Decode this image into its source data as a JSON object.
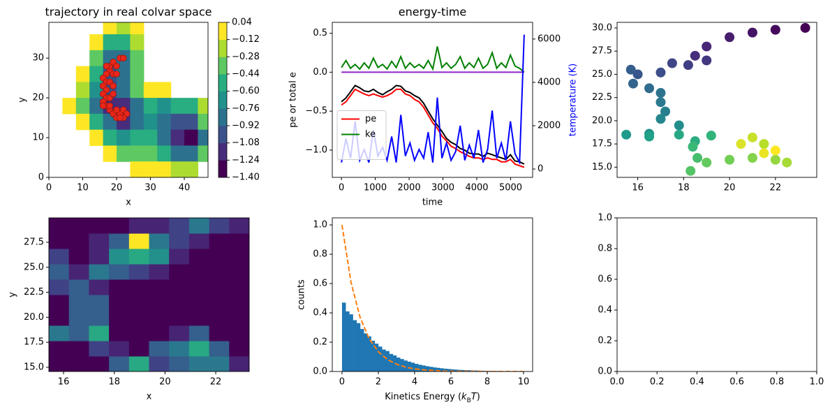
{
  "chart_data": [
    {
      "type": "contour",
      "title": "trajectory in real colvar space",
      "xlabel": "x",
      "ylabel": "y",
      "xlim": [
        0,
        47
      ],
      "ylim": [
        0,
        39
      ],
      "xticks": [
        0,
        10,
        20,
        30,
        40
      ],
      "yticks": [
        0,
        10,
        20,
        30
      ],
      "x": [
        2,
        6,
        10,
        14,
        18,
        22,
        26,
        30,
        34,
        38,
        42,
        46
      ],
      "y": [
        38,
        34,
        30,
        26,
        22,
        18,
        14,
        10,
        6,
        2
      ],
      "z": [
        [
          null,
          null,
          null,
          null,
          0.0,
          -0.2,
          -0.1,
          null,
          null,
          null,
          null,
          null
        ],
        [
          null,
          null,
          null,
          -0.1,
          -0.5,
          -0.6,
          -0.2,
          null,
          null,
          null,
          null,
          null
        ],
        [
          null,
          null,
          null,
          -0.3,
          -0.8,
          -0.8,
          -0.3,
          null,
          null,
          null,
          null,
          null
        ],
        [
          null,
          null,
          -0.1,
          -0.6,
          -1.0,
          -0.8,
          -0.3,
          null,
          null,
          null,
          null,
          null
        ],
        [
          null,
          null,
          -0.2,
          -0.7,
          -1.0,
          -0.8,
          -0.4,
          -0.1,
          0.0,
          null,
          null,
          null
        ],
        [
          null,
          -0.1,
          -0.3,
          -0.8,
          -1.1,
          -1.2,
          -0.8,
          -0.6,
          -0.7,
          -0.6,
          -0.5,
          -0.2
        ],
        [
          null,
          null,
          -0.1,
          -0.5,
          -0.9,
          -1.2,
          -0.8,
          -0.7,
          -0.9,
          -1.0,
          -1.0,
          -0.4
        ],
        [
          null,
          null,
          null,
          -0.1,
          -0.5,
          -0.7,
          -0.6,
          -0.6,
          -0.9,
          -1.2,
          -1.4,
          -0.8
        ],
        [
          null,
          null,
          null,
          null,
          -0.1,
          -0.3,
          -0.3,
          -0.3,
          -0.5,
          -0.8,
          -0.9,
          -0.4
        ],
        [
          null,
          null,
          null,
          null,
          null,
          null,
          0.0,
          -0.1,
          -0.1,
          -0.2,
          -0.2,
          null
        ]
      ],
      "cbar_ticks": [
        {
          "value": -1.4,
          "label": "−1.40"
        },
        {
          "value": -1.24,
          "label": "−1.24"
        },
        {
          "value": -1.08,
          "label": "−1.08"
        },
        {
          "value": -0.92,
          "label": "−0.92"
        },
        {
          "value": -0.76,
          "label": "−0.76"
        },
        {
          "value": -0.6,
          "label": "−0.60"
        },
        {
          "value": -0.44,
          "label": "−0.44"
        },
        {
          "value": -0.28,
          "label": "−0.28"
        },
        {
          "value": -0.12,
          "label": "−0.12"
        },
        0.04
      ],
      "colors": [
        "#440154",
        "#472d7b",
        "#3b528b",
        "#2c728e",
        "#21918c",
        "#28ae80",
        "#5ec962",
        "#addc30",
        "#fde725"
      ],
      "traj_x": [
        18,
        17,
        16,
        17,
        16,
        17,
        16,
        17,
        16,
        17,
        18,
        19,
        20,
        21,
        22,
        23,
        22,
        20,
        19,
        18,
        19,
        20,
        21,
        22,
        20,
        18,
        17,
        19,
        18,
        19,
        16,
        18,
        21
      ],
      "traj_y": [
        27,
        26,
        25,
        24,
        23,
        22,
        21,
        20,
        19,
        18,
        17,
        16,
        15,
        16,
        17,
        16,
        15,
        17,
        26,
        28,
        29,
        28,
        30,
        30,
        26,
        24,
        28,
        23,
        20,
        21,
        18,
        18,
        15
      ],
      "traj_color": "#e8261a"
    },
    {
      "type": "line",
      "title": "energy-time",
      "xlabel": "time",
      "ylabel": "pe or total e",
      "y2label": "temperature (K)",
      "y2label_color": "#0000ff",
      "xlim": [
        -270,
        5650
      ],
      "ylim": [
        -1.35,
        0.64
      ],
      "y2lim": [
        -385,
        6770
      ],
      "xticks": [
        0,
        1000,
        2000,
        3000,
        4000,
        5000
      ],
      "yticks": [
        {
          "value": -1,
          "label": "−1.0"
        },
        {
          "value": -0.5,
          "label": "−0.5"
        },
        {
          "value": 0,
          "label": "0.0"
        },
        {
          "value": 0.5,
          "label": "0.5"
        }
      ],
      "y2ticks": [
        0,
        2000,
        4000,
        6000
      ],
      "legend": "center left",
      "x": [
        0,
        135,
        270,
        405,
        540,
        675,
        810,
        945,
        1080,
        1215,
        1350,
        1485,
        1620,
        1755,
        1890,
        2025,
        2160,
        2295,
        2430,
        2565,
        2700,
        2835,
        2970,
        3105,
        3240,
        3375,
        3510,
        3645,
        3780,
        3915,
        4050,
        4185,
        4320,
        4455,
        4590,
        4725,
        4860,
        4995,
        5130,
        5265,
        5400
      ],
      "series": [
        {
          "name": "pe",
          "color": "#ff0000",
          "values": [
            -0.42,
            -0.38,
            -0.3,
            -0.22,
            -0.25,
            -0.28,
            -0.3,
            -0.28,
            -0.3,
            -0.32,
            -0.3,
            -0.27,
            -0.22,
            -0.22,
            -0.28,
            -0.3,
            -0.35,
            -0.38,
            -0.45,
            -0.55,
            -0.65,
            -0.72,
            -0.82,
            -0.88,
            -0.95,
            -0.98,
            -1.02,
            -1.05,
            -1.08,
            -1.1,
            -1.1,
            -1.12,
            -1.1,
            -1.12,
            -1.12,
            -1.15,
            -1.15,
            -1.12,
            -1.18,
            -1.2,
            -1.22
          ]
        },
        {
          "name": "ke",
          "color": "#008000",
          "values": [
            0.06,
            0.15,
            0.05,
            0.1,
            0.04,
            0.12,
            0.05,
            0.18,
            0.06,
            0.1,
            0.04,
            0.14,
            0.06,
            0.2,
            0.05,
            0.12,
            0.06,
            0.1,
            0.05,
            0.15,
            0.04,
            0.33,
            0.06,
            0.12,
            0.05,
            0.1,
            0.2,
            0.05,
            0.12,
            0.06,
            0.18,
            0.05,
            0.1,
            0.25,
            0.05,
            0.12,
            0.06,
            0.22,
            0.08,
            0.05,
            0.0
          ]
        },
        {
          "color": "#000000",
          "values": [
            -0.38,
            -0.33,
            -0.25,
            -0.17,
            -0.2,
            -0.24,
            -0.25,
            -0.22,
            -0.26,
            -0.29,
            -0.25,
            -0.22,
            -0.17,
            -0.18,
            -0.24,
            -0.26,
            -0.3,
            -0.33,
            -0.4,
            -0.5,
            -0.6,
            -0.68,
            -0.76,
            -0.85,
            -0.9,
            -0.93,
            -0.98,
            -1.0,
            -1.04,
            -1.05,
            -1.05,
            -1.08,
            -1.04,
            -1.06,
            -1.08,
            -1.1,
            -1.12,
            -1.06,
            -1.14,
            -1.15,
            -1.18
          ]
        },
        {
          "color": "#8e24c8",
          "values": [
            0,
            0,
            0,
            0,
            0,
            0,
            0,
            0,
            0,
            0,
            0,
            0,
            0,
            0,
            0,
            0,
            0,
            0,
            0,
            0,
            0,
            0,
            0,
            0,
            0,
            0,
            0,
            0,
            0,
            0,
            0,
            0,
            0,
            0,
            0,
            0,
            0,
            0,
            0,
            0,
            0
          ]
        },
        {
          "color": "#0000ff",
          "axis": "y2",
          "values": [
            300,
            1400,
            500,
            2200,
            400,
            900,
            300,
            1800,
            600,
            1000,
            400,
            1500,
            300,
            2500,
            600,
            1200,
            400,
            900,
            500,
            1700,
            300,
            3300,
            500,
            1200,
            400,
            800,
            2000,
            400,
            1100,
            500,
            1800,
            300,
            900,
            2700,
            500,
            1200,
            400,
            2200,
            700,
            300,
            6200
          ]
        }
      ]
    },
    {
      "type": "scatter",
      "xlim": [
        15.1,
        23.8
      ],
      "ylim": [
        13.9,
        30.6
      ],
      "xticks": [
        16,
        18,
        20,
        22
      ],
      "yticks": [
        {
          "value": 15,
          "label": "15.0"
        },
        17.5,
        {
          "value": 20,
          "label": "20.0"
        },
        22.5,
        {
          "value": 25,
          "label": "25.0"
        },
        27.5,
        {
          "value": 30,
          "label": "30.0"
        }
      ],
      "colormap": [
        "#440154",
        "#482878",
        "#3e4989",
        "#31688e",
        "#26828e",
        "#1f9e89",
        "#35b779",
        "#6ece58",
        "#b5de2b",
        "#fde725"
      ],
      "x": [
        23.3,
        22,
        21,
        20,
        19,
        18.5,
        19,
        18.2,
        17.5,
        17,
        16,
        15.7,
        15.8,
        16.5,
        17,
        17,
        17.2,
        17,
        17.8,
        16.5,
        15.5,
        16.5,
        17.8,
        18.5,
        19.2,
        18.4,
        18.6,
        18.3,
        19,
        20,
        21,
        22,
        22.5,
        21.5,
        21,
        20.5,
        21.5,
        22
      ],
      "y": [
        30,
        29.8,
        29.5,
        29,
        28,
        27,
        26.5,
        26,
        26.2,
        25.2,
        25,
        25.5,
        24,
        23.5,
        23,
        22,
        21,
        20.2,
        19.5,
        18.6,
        18.5,
        18.3,
        18.5,
        17.8,
        18.4,
        17.2,
        16,
        14.6,
        15.5,
        15.8,
        16,
        15.8,
        15.5,
        17.5,
        18.2,
        17.5,
        16.5,
        16.8
      ]
    },
    {
      "type": "hist2d",
      "xlabel": "x",
      "ylabel": "y",
      "xlim": [
        15.42,
        23.32
      ],
      "ylim": [
        14.58,
        29.94
      ],
      "xticks": [
        16,
        18,
        20,
        22
      ],
      "yticks": [
        {
          "value": 15,
          "label": "15.0"
        },
        17.5,
        {
          "value": 20,
          "label": "20.0"
        },
        22.5,
        {
          "value": 25,
          "label": "25.0"
        },
        27.5
      ],
      "colormap": [
        "#440154",
        "#482878",
        "#3e4989",
        "#31688e",
        "#26828e",
        "#1f9e89",
        "#35b779",
        "#6ece58",
        "#b5de2b",
        "#fde725"
      ],
      "xbins": [
        15.42,
        16.21,
        17.0,
        17.79,
        18.58,
        19.37,
        20.16,
        20.95,
        21.74,
        22.53,
        23.32
      ],
      "ybins": [
        14.58,
        16.12,
        17.65,
        19.19,
        20.72,
        22.26,
        23.8,
        25.33,
        26.87,
        28.4,
        29.94
      ],
      "counts": [
        [
          0,
          0,
          0,
          3,
          6,
          2,
          3,
          4,
          4,
          1
        ],
        [
          0,
          0,
          2,
          1,
          0,
          3,
          4,
          6,
          3,
          0
        ],
        [
          4,
          3,
          6,
          0,
          0,
          0,
          1,
          3,
          0,
          0
        ],
        [
          0,
          3,
          3,
          0,
          0,
          0,
          0,
          0,
          0,
          0
        ],
        [
          0,
          3,
          3,
          0,
          0,
          0,
          0,
          0,
          0,
          0
        ],
        [
          2,
          3,
          1,
          0,
          0,
          0,
          0,
          0,
          0,
          0
        ],
        [
          3,
          1,
          4,
          3,
          2,
          1,
          0,
          0,
          0,
          0
        ],
        [
          2,
          0,
          1,
          5,
          6,
          5,
          1,
          0,
          0,
          0
        ],
        [
          0,
          0,
          1,
          3,
          10,
          4,
          2,
          1,
          0,
          0
        ],
        [
          0,
          0,
          0,
          0,
          1,
          1,
          2,
          4,
          2,
          1
        ]
      ]
    },
    {
      "type": "histogram",
      "xlabel": [
        "Kinetics Energy (",
        "k",
        "B",
        "T",
        ")"
      ],
      "ylabel": "counts",
      "xlim": [
        -0.536,
        10.5
      ],
      "ylim": [
        0,
        1.048
      ],
      "xticks": [
        0,
        2,
        4,
        6,
        8,
        10
      ],
      "yticks": [
        {
          "value": 0,
          "label": "0.0"
        },
        {
          "value": 0.2,
          "label": "0.2"
        },
        {
          "value": 0.4,
          "label": "0.4"
        },
        {
          "value": 0.6,
          "label": "0.6"
        },
        {
          "value": 0.8,
          "label": "0.8"
        },
        {
          "value": 1,
          "label": "1.0"
        }
      ],
      "color": "#1f77b4",
      "bins": [
        0,
        0.2,
        0.4,
        0.6,
        0.8,
        1.0,
        1.2,
        1.4,
        1.6,
        1.8,
        2.0,
        2.2,
        2.4,
        2.6,
        2.8,
        3.0,
        3.2,
        3.4,
        3.6,
        3.8,
        4.0,
        4.2,
        4.4,
        4.6,
        4.8,
        5.0,
        5.2,
        5.4,
        5.6,
        5.8,
        6.0,
        6.2,
        6.4,
        6.6,
        6.8,
        7.0,
        7.2,
        7.4,
        7.6,
        7.8,
        8.0,
        8.2,
        8.4,
        8.6,
        8.8,
        9.0,
        9.2,
        9.4,
        9.6,
        9.8,
        10.0
      ],
      "counts": [
        0.47,
        0.41,
        0.39,
        0.35,
        0.33,
        0.29,
        0.26,
        0.24,
        0.21,
        0.19,
        0.17,
        0.15,
        0.14,
        0.12,
        0.11,
        0.095,
        0.085,
        0.075,
        0.067,
        0.06,
        0.052,
        0.046,
        0.041,
        0.036,
        0.032,
        0.028,
        0.025,
        0.022,
        0.019,
        0.017,
        0.015,
        0.013,
        0.011,
        0.01,
        0.009,
        0.008,
        0.007,
        0.006,
        0.005,
        0.004,
        0.004,
        0.003,
        0.003,
        0.002,
        0.002,
        0.002,
        0.001,
        0.001,
        0.001,
        0.001
      ],
      "curve": {
        "color": "#ff7f0e",
        "dashed": true,
        "x": [
          0,
          0.5,
          1,
          1.5,
          2,
          2.5,
          3,
          3.5,
          4,
          4.5,
          5,
          5.5,
          6,
          6.5,
          7,
          7.5,
          8,
          8.5,
          9,
          9.5,
          10
        ],
        "y": [
          1,
          0.607,
          0.368,
          0.223,
          0.135,
          0.082,
          0.05,
          0.03,
          0.018,
          0.011,
          0.007,
          0.004,
          0.002,
          0.002,
          0.001,
          0.001,
          0,
          0,
          0,
          0,
          0
        ]
      }
    },
    {
      "type": "axes",
      "xlim": [
        0,
        1
      ],
      "ylim": [
        0,
        1
      ],
      "xticks": [
        {
          "value": 0,
          "label": "0.0"
        },
        {
          "value": 0.2,
          "label": "0.2"
        },
        {
          "value": 0.4,
          "label": "0.4"
        },
        {
          "value": 0.6,
          "label": "0.6"
        },
        {
          "value": 0.8,
          "label": "0.8"
        },
        {
          "value": 1,
          "label": "1.0"
        }
      ],
      "yticks": [
        {
          "value": 0,
          "label": "0.0"
        },
        {
          "value": 0.2,
          "label": "0.2"
        },
        {
          "value": 0.4,
          "label": "0.4"
        },
        {
          "value": 0.6,
          "label": "0.6"
        },
        {
          "value": 0.8,
          "label": "0.8"
        },
        {
          "value": 1,
          "label": "1.0"
        }
      ]
    }
  ]
}
